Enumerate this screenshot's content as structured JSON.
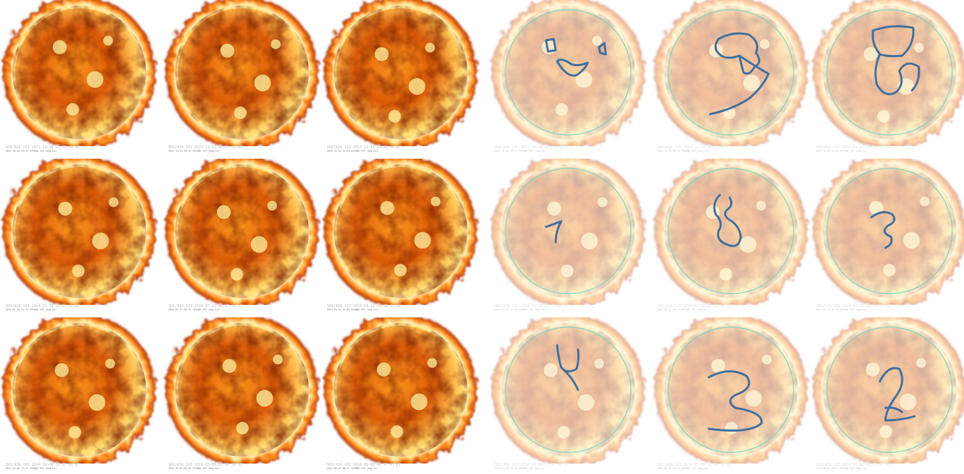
{
  "colors": {
    "corona_hot": "#fff7c2",
    "corona_mid": "#ffb12a",
    "corona_dark": "#8a1c00",
    "disk_dark": "#3a0600",
    "overlay_wash": "#ffffff",
    "limb_circle": "#7cd6c8",
    "glyph_stroke": "#3f6f9f"
  },
  "original_panels": [
    {
      "line1": "SDO/AIA  193  2023-10-26 23:57:53 UT",
      "line2": "2023-10-26 23:57  SIRONA 193 (bkg-hs)"
    },
    {
      "line1": "SDO/AIA  193  2023-11-23 08:57:53 UT",
      "line2": "2023-11-23 08:57  SIRONA 193 (bkg-hs)"
    },
    {
      "line1": "SDO/AIA  193  2023-12-26 14:09:05 UT",
      "line2": "2023-12-26 14:09  SIRONA 193 (bkg-hs)"
    },
    {
      "line1": "SDO/AIA  193  2024-01-16 21:57:41 UT",
      "line2": "2024-01-16 21:57  SIRONA 193 (bkg-hs)"
    },
    {
      "line1": "SDO/AIA  193  2024-02-12 08:57:53 UT",
      "line2": "2024-02-12 08:57  SIRONA 193 (bkg-hs)"
    },
    {
      "line1": "SDO/AIA  193  2024-03-12 14:09:17 UT",
      "line2": "2024-03-12 14:09  SIRONA 193 (bkg-hs)"
    },
    {
      "line1": "SDO/AIA  193  2024-04-08 21:57:05 UT",
      "line2": "2024-04-08 21:57  SIRONA 193 (bkg-hs)"
    },
    {
      "line1": "SDO/AIA  193  2024-05-06 03:09:29 UT",
      "line2": "2024-05-06 03:09  SIRONA 193 (bkg-hs)"
    },
    {
      "line1": "SDO/AIA  193  2024-06-02 08:57:41 UT",
      "line2": "2024-06-02 08:57  SIRONA 193 (bkg-hs)"
    }
  ],
  "annotated_panels": [
    {
      "line1": "SDO/AIA  193  2023-10-26 23:57:53 UT",
      "line2": "2023-10-26 23:57  SIRONA 193 (bkg-hs)",
      "glyph": "smiley-face-icon"
    },
    {
      "line1": "SDO/AIA  193  2023-11-23 08:57:53 UT",
      "line2": "2023-11-23 08:57  SIRONA 193 (bkg-hs)",
      "glyph": "digit-9-icon"
    },
    {
      "line1": "SDO/AIA  193  2023-12-26 14:09:05 UT",
      "line2": "2023-12-26 14:09  SIRONA 193 (bkg-hs)",
      "glyph": "digit-8-icon"
    },
    {
      "line1": "SDO/AIA  193  2024-01-16 21:57:41 UT",
      "line2": "2024-01-16 21:57  SIRONA 193 (bkg-hs)",
      "glyph": "digit-7-icon"
    },
    {
      "line1": "SDO/AIA  193  2024-02-12 08:57:53 UT",
      "line2": "2024-02-12 08:57  SIRONA 193 (bkg-hs)",
      "glyph": "digit-6-icon"
    },
    {
      "line1": "SDO/AIA  193  2024-03-12 14:09:17 UT",
      "line2": "2024-03-12 14:09  SIRONA 193 (bkg-hs)",
      "glyph": "digit-5-icon"
    },
    {
      "line1": "SDO/AIA  193  2024-04-08 21:57:05 UT",
      "line2": "2024-04-08 21:57  SIRONA 193 (bkg-hs)",
      "glyph": "digit-4-icon"
    },
    {
      "line1": "SDO/AIA  193  2024-05-06 03:09:29 UT",
      "line2": "2024-05-06 03:09  SIRONA 193 (bkg-hs)",
      "glyph": "digit-3-icon"
    },
    {
      "line1": "SDO/AIA  193  2024-06-02 08:57:41 UT",
      "line2": "2024-06-02 08:57  SIRONA 193 (bkg-hs)",
      "glyph": "digit-2-icon"
    }
  ]
}
